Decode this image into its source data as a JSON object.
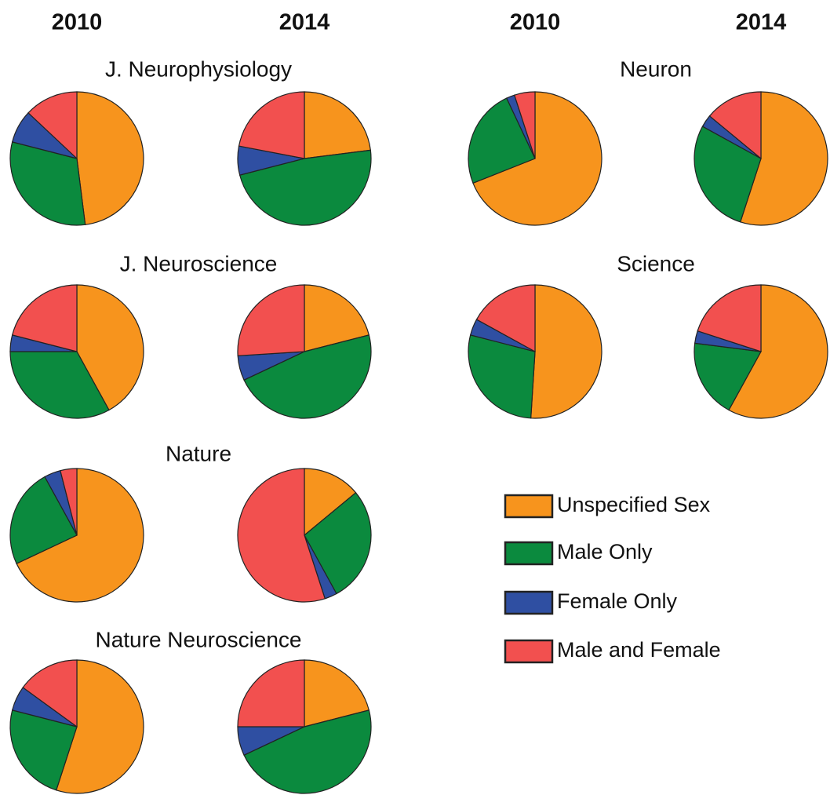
{
  "column_headers": [
    "2010",
    "2014",
    "2010",
    "2014"
  ],
  "legend": [
    {
      "name": "Unspecified Sex",
      "color": "#f7941d"
    },
    {
      "name": "Male Only",
      "color": "#0b8a3e"
    },
    {
      "name": "Female Only",
      "color": "#2f4fa2"
    },
    {
      "name": "Male and Female",
      "color": "#f2504f"
    }
  ],
  "chart_data": [
    {
      "type": "pie",
      "title": "J. Neurophysiology",
      "values": [
        [
          48,
          31,
          8,
          13
        ],
        [
          23,
          48,
          7,
          22
        ]
      ]
    },
    {
      "type": "pie",
      "title": "Neuron",
      "values": [
        [
          69,
          24,
          2,
          5
        ],
        [
          55,
          28,
          3,
          14
        ]
      ]
    },
    {
      "type": "pie",
      "title": "J. Neuroscience",
      "values": [
        [
          42,
          33,
          4,
          21
        ],
        [
          21,
          47,
          6,
          26
        ]
      ]
    },
    {
      "type": "pie",
      "title": "Science",
      "values": [
        [
          51,
          28,
          4,
          17
        ],
        [
          58,
          19,
          3,
          20
        ]
      ]
    },
    {
      "type": "pie",
      "title": "Nature",
      "values": [
        [
          68,
          24,
          4,
          4
        ],
        [
          14,
          28,
          3,
          55
        ]
      ]
    },
    {
      "type": "pie",
      "title": "Nature Neuroscience",
      "values": [
        [
          55,
          24,
          6,
          15
        ],
        [
          21,
          47,
          7,
          25
        ]
      ]
    }
  ]
}
